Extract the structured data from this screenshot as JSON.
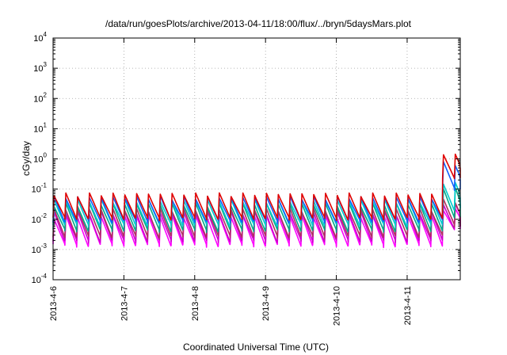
{
  "chart_data": {
    "type": "line",
    "title": "/data/run/goesPlots/archive/2013-04-11/18:00/flux/../bryn/5daysMars.plot",
    "xlabel": "Coordinated Universal Time (UTC)",
    "ylabel": "cGy/day",
    "yscale": "log",
    "ylim": [
      0.0001,
      10000
    ],
    "xlim": [
      "2013-04-06T00:00",
      "2013-04-11T18:00"
    ],
    "grid": true,
    "legend": "none",
    "y_ticks": [
      {
        "base": "10",
        "exp": "-4"
      },
      {
        "base": "10",
        "exp": "-3"
      },
      {
        "base": "10",
        "exp": "-2"
      },
      {
        "base": "10",
        "exp": "-1"
      },
      {
        "base": "10",
        "exp": "0"
      },
      {
        "base": "10",
        "exp": "1"
      },
      {
        "base": "10",
        "exp": "2"
      },
      {
        "base": "10",
        "exp": "3"
      },
      {
        "base": "10",
        "exp": "4"
      }
    ],
    "x_ticks": [
      "2013-4-6",
      "2013-4-7",
      "2013-4-8",
      "2013-4-9",
      "2013-4-10",
      "2013-4-11"
    ],
    "series_colors": [
      "#ff00ff",
      "#cc00cc",
      "#b03060",
      "#00aa88",
      "#00cccc",
      "#1060ff",
      "#e00000"
    ],
    "series": [
      {
        "color": "#ff00ff",
        "base": 0.0013,
        "peak": 0.012,
        "flare_base": 0.004,
        "flare_peak": 0.02
      },
      {
        "color": "#cc00cc",
        "base": 0.0018,
        "peak": 0.016,
        "flare_base": 0.005,
        "flare_peak": 0.03
      },
      {
        "color": "#b03060",
        "base": 0.0025,
        "peak": 0.02,
        "flare_base": 0.006,
        "flare_peak": 0.04
      },
      {
        "color": "#00aa88",
        "base": 0.004,
        "peak": 0.03,
        "flare_base": 0.01,
        "flare_peak": 0.1
      },
      {
        "color": "#00cccc",
        "base": 0.006,
        "peak": 0.04,
        "flare_base": 0.02,
        "flare_peak": 0.15
      },
      {
        "color": "#1060ff",
        "base": 0.008,
        "peak": 0.05,
        "flare_base": 0.1,
        "flare_peak": 0.7
      },
      {
        "color": "#e00000",
        "base": 0.01,
        "peak": 0.065,
        "flare_base": 0.2,
        "flare_peak": 1.3
      }
    ],
    "cycle_hours": 4,
    "flare_start": "2013-04-11T09:00"
  }
}
